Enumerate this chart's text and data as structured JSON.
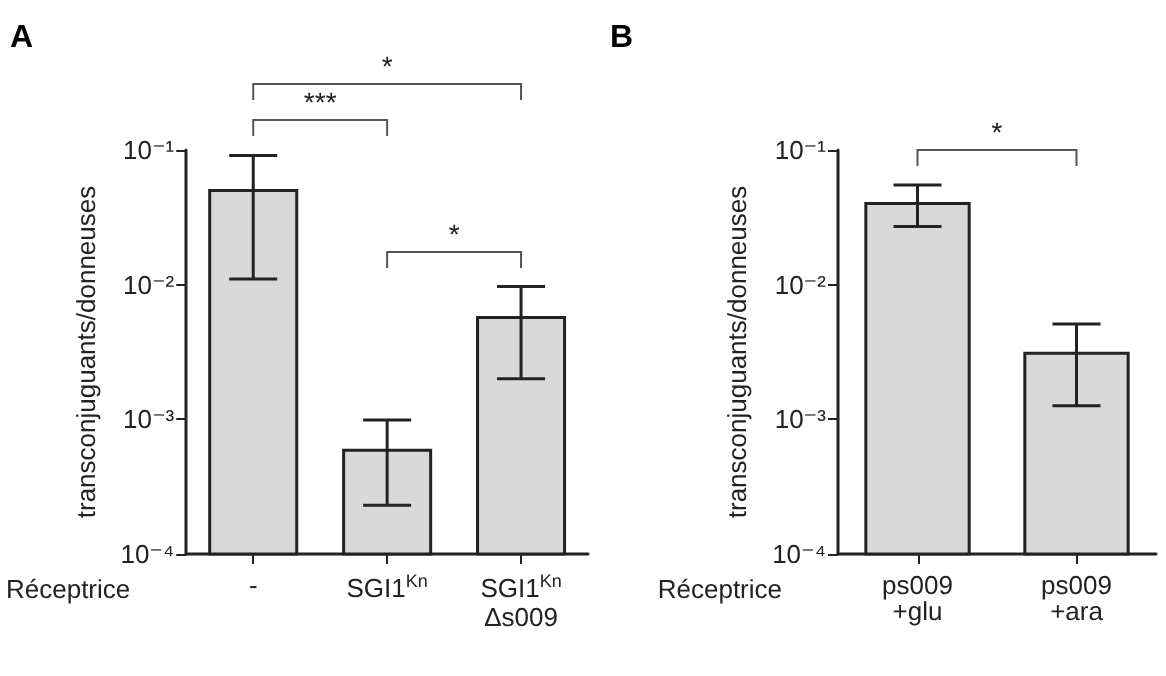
{
  "chart_data": [
    {
      "type": "bar",
      "title": "A",
      "xlabel": "Réceptrice",
      "ylabel": "transconjuguants/donneuses",
      "categories": [
        "-",
        "SGI1$^{Kn}$",
        "SGI1$^{Kn}$\nΔs009"
      ],
      "values": [
        0.05,
        0.00059,
        0.0057
      ],
      "errors": [
        [
          0.011,
          0.091
        ],
        [
          0.00023,
          0.00099
        ],
        [
          0.002,
          0.0097
        ]
      ],
      "color": "#d9d9d9",
      "log": true,
      "ylim": [
        0.0001,
        0.1
      ],
      "yticks": [
        {
          "value": 0.0001,
          "label": "10⁻⁴"
        },
        {
          "value": 0.001,
          "label": "10⁻³"
        },
        {
          "value": 0.01,
          "label": "10⁻²"
        },
        {
          "value": 0.1,
          "label": "10⁻¹"
        }
      ],
      "grid": false,
      "annotations": [
        "*",
        "***",
        "*"
      ]
    },
    {
      "type": "bar",
      "title": "B",
      "xlabel": "Réceptrice",
      "ylabel": "transconjuguants/donneuses",
      "categories": [
        "ps009\n+glu",
        "ps009\n+ara"
      ],
      "values": [
        0.04,
        0.0031
      ],
      "errors": [
        [
          0.027,
          0.055
        ],
        [
          0.00126,
          0.0051
        ]
      ],
      "color": "#d9d9d9",
      "log": true,
      "ylim": [
        0.0001,
        0.1
      ],
      "yticks": [
        {
          "value": 0.0001,
          "label": "10⁻⁴"
        },
        {
          "value": 0.001,
          "label": "10⁻³"
        },
        {
          "value": 0.01,
          "label": "10⁻²"
        },
        {
          "value": 0.1,
          "label": "10⁻¹"
        }
      ],
      "grid": false,
      "annotations": [
        "*"
      ]
    }
  ]
}
